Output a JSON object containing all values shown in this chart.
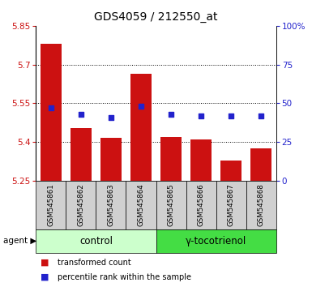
{
  "title": "GDS4059 / 212550_at",
  "samples": [
    "GSM545861",
    "GSM545862",
    "GSM545863",
    "GSM545864",
    "GSM545865",
    "GSM545866",
    "GSM545867",
    "GSM545868"
  ],
  "red_values": [
    5.78,
    5.455,
    5.415,
    5.665,
    5.42,
    5.41,
    5.33,
    5.375
  ],
  "blue_values": [
    47,
    43,
    41,
    48,
    43,
    42,
    42,
    42
  ],
  "ylim_left": [
    5.25,
    5.85
  ],
  "ylim_right": [
    0,
    100
  ],
  "yticks_left": [
    5.25,
    5.4,
    5.55,
    5.7,
    5.85
  ],
  "yticks_right": [
    0,
    25,
    50,
    75,
    100
  ],
  "ytick_labels_left": [
    "5.25",
    "5.4",
    "5.55",
    "5.7",
    "5.85"
  ],
  "ytick_labels_right": [
    "0",
    "25",
    "50",
    "75",
    "100%"
  ],
  "grid_lines": [
    5.4,
    5.55,
    5.7
  ],
  "bar_color": "#cc1111",
  "dot_color": "#2222cc",
  "bar_bottom": 5.25,
  "bar_width": 0.7,
  "group1_label": "control",
  "group2_label": "γ-tocotrienol",
  "agent_label": "agent",
  "legend_red": "transformed count",
  "legend_blue": "percentile rank within the sample",
  "group1_color": "#ccffcc",
  "group2_color": "#44dd44",
  "tick_color_left": "#cc1111",
  "tick_color_right": "#2222cc",
  "sample_bg_color": "#d0d0d0",
  "plot_bg_color": "#ffffff"
}
